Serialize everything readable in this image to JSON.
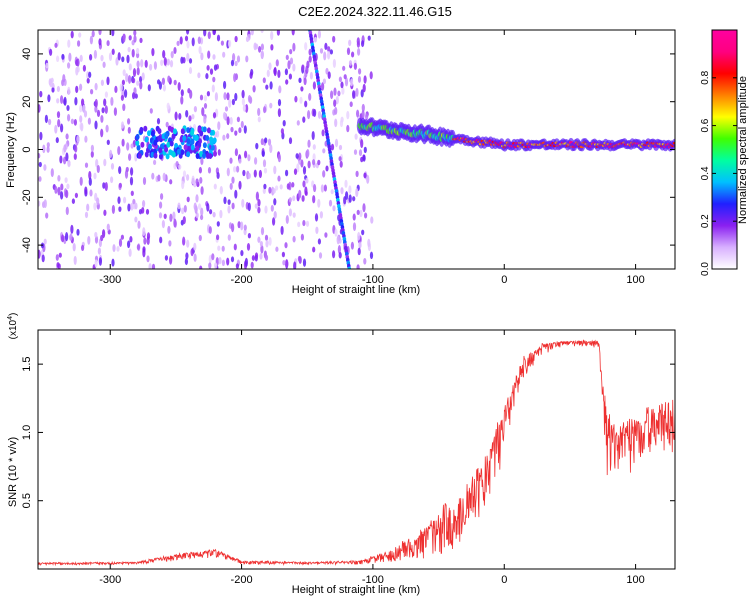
{
  "title": "C2E2.2024.322.11.46.G15",
  "spectrogram": {
    "type": "heatmap",
    "xlabel": "Height of straight line (km)",
    "ylabel": "Frequency (Hz)",
    "xlim": [
      -355,
      130
    ],
    "ylim": [
      -50,
      50
    ],
    "xticks": [
      -300,
      -200,
      -100,
      0,
      100
    ],
    "yticks": [
      -40,
      -20,
      0,
      20,
      40
    ],
    "colorbar": {
      "label": "Normalized spectral amplitude",
      "range": [
        0,
        1
      ],
      "ticks": [
        0.0,
        0.2,
        0.4,
        0.6,
        0.8
      ],
      "tick_labels": [
        "0.0",
        "0.2",
        "0.4",
        "0.6",
        "0.8"
      ],
      "colormap": [
        "#ffffff",
        "#d8b0ff",
        "#8a20f0",
        "#2020ff",
        "#00c0ff",
        "#00ffa0",
        "#40ff00",
        "#ffff00",
        "#ff8000",
        "#ff0000",
        "#ff0080",
        "#ff00a0"
      ]
    },
    "features": [
      {
        "name": "noise scatter",
        "x_range": [
          -355,
          -100
        ],
        "freq_range": [
          -50,
          50
        ],
        "level": 0.15
      },
      {
        "name": "tracking band",
        "x_range": [
          -280,
          -220
        ],
        "freq_center": 3,
        "freq_width": 12,
        "level": 0.25
      },
      {
        "name": "drifting line",
        "x_start": -148,
        "freq_start": 50,
        "x_end": -118,
        "freq_end": -50,
        "level": 0.25
      },
      {
        "name": "carrier",
        "x_range": [
          -110,
          130
        ],
        "freq_start": 10,
        "freq_end": 2,
        "level": 0.8
      }
    ]
  },
  "snr": {
    "type": "line",
    "xlabel": "Height of straight line (km)",
    "ylabel": "SNR (10 * v/v)",
    "exponent_label": "(x10",
    "exponent_sup": "4",
    "exponent_close": ")",
    "xlim": [
      -355,
      130
    ],
    "ylim": [
      0,
      17500
    ],
    "xticks": [
      -300,
      -200,
      -100,
      0,
      100
    ],
    "yticks": [
      5000,
      10000,
      15000
    ],
    "ytick_labels": [
      "0.5",
      "1.0",
      "1.5"
    ],
    "color": "#ee3030",
    "envelope": {
      "x": [
        -355,
        -280,
        -260,
        -240,
        -220,
        -200,
        -150,
        -110,
        -90,
        -70,
        -55,
        -45,
        -35,
        -25,
        -15,
        -5,
        5,
        15,
        30,
        45,
        60,
        72,
        78,
        85,
        100,
        115,
        130
      ],
      "y": [
        450,
        500,
        900,
        1200,
        1400,
        600,
        500,
        600,
        1200,
        2300,
        3500,
        4500,
        5000,
        6500,
        8000,
        10500,
        13000,
        15500,
        16500,
        16700,
        16700,
        16700,
        11000,
        10500,
        11000,
        12000,
        12000
      ],
      "noise": [
        150,
        150,
        350,
        450,
        500,
        250,
        150,
        250,
        700,
        1500,
        2500,
        3500,
        3500,
        3500,
        4000,
        3500,
        2500,
        1500,
        700,
        400,
        400,
        500,
        4500,
        4000,
        3500,
        3500,
        3500
      ]
    }
  }
}
